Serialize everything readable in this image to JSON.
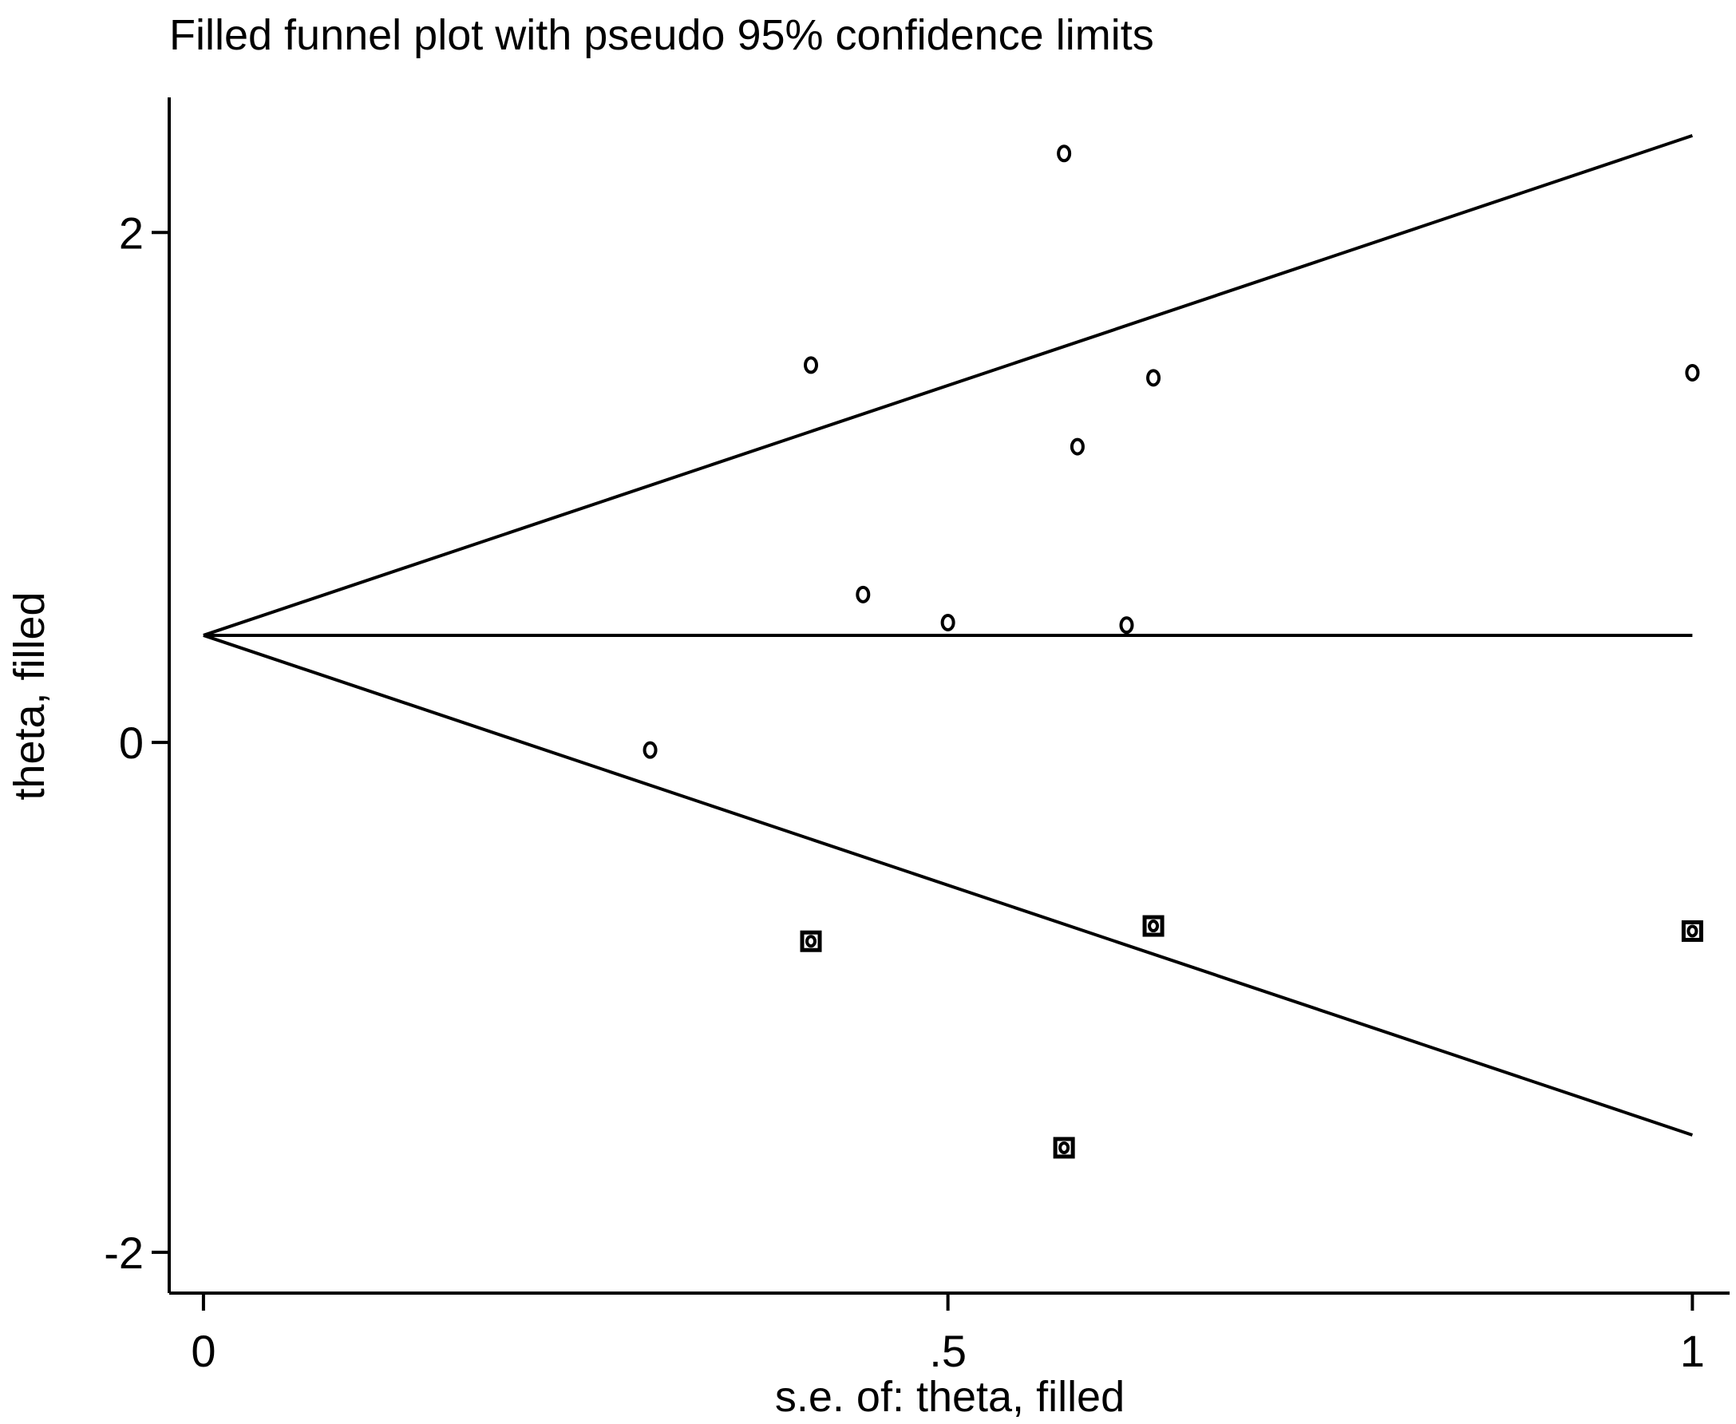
{
  "chart_data": {
    "type": "scatter",
    "title": "Filled funnel plot with pseudo 95% confidence limits",
    "xlabel": "s.e. of: theta, filled",
    "ylabel": "theta, filled",
    "x_ticks": [
      {
        "value": 0,
        "label": "0"
      },
      {
        "value": 0.5,
        "label": ".5"
      },
      {
        "value": 1,
        "label": "1"
      }
    ],
    "y_ticks": [
      {
        "value": 2,
        "label": "2"
      },
      {
        "value": 0,
        "label": "0"
      },
      {
        "value": -2,
        "label": "-2"
      }
    ],
    "xlim": [
      -0.023,
      1.025
    ],
    "ylim": [
      -2.16,
      2.53
    ],
    "grid": false,
    "legend": "none",
    "pooled_estimate": 0.42,
    "confidence_limits": {
      "se_max": 1.0,
      "upper_at_max": 2.38,
      "lower_at_max": -1.54
    },
    "series": [
      {
        "marker": "circle",
        "points": [
          {
            "x": 0.578,
            "y": 2.31
          },
          {
            "x": 0.408,
            "y": 1.48
          },
          {
            "x": 0.638,
            "y": 1.43
          },
          {
            "x": 1.0,
            "y": 1.45
          },
          {
            "x": 0.587,
            "y": 1.16
          },
          {
            "x": 0.443,
            "y": 0.58
          },
          {
            "x": 0.5,
            "y": 0.47
          },
          {
            "x": 0.62,
            "y": 0.46
          },
          {
            "x": 0.3,
            "y": -0.03
          }
        ]
      },
      {
        "marker": "filled-square",
        "points": [
          {
            "x": 0.408,
            "y": -0.78
          },
          {
            "x": 0.638,
            "y": -0.72
          },
          {
            "x": 1.0,
            "y": -0.74
          },
          {
            "x": 0.578,
            "y": -1.59
          }
        ]
      }
    ],
    "colors": {
      "ink": "#000000",
      "background": "#ffffff"
    }
  }
}
